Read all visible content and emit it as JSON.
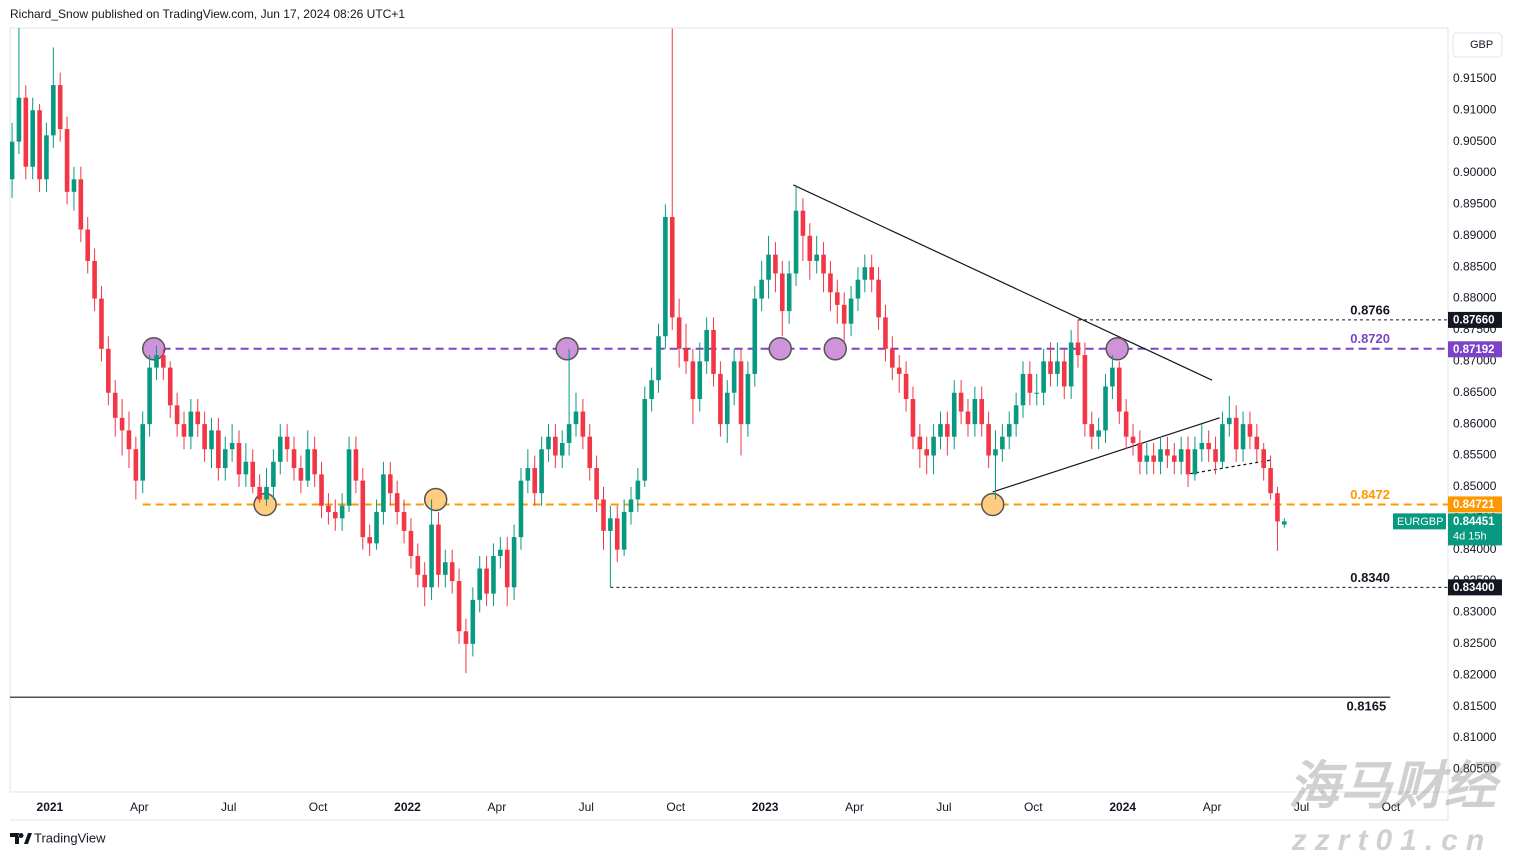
{
  "header": {
    "text": "Richard_Snow published on TradingView.com, Jun 17, 2024 08:26 UTC+1"
  },
  "chart_data": {
    "type": "candlestick",
    "currency": "GBP",
    "symbol": "EURGBP",
    "countdown": "4d 15h",
    "up_color": "#089981",
    "down_color": "#f23645",
    "grid": false,
    "open": [
      0.899,
      0.905,
      0.912,
      0.901,
      0.91,
      0.899,
      0.906,
      0.914,
      0.907,
      0.897,
      0.899,
      0.891,
      0.886,
      0.88,
      0.872,
      0.865,
      0.861,
      0.859,
      0.856,
      0.851,
      0.86,
      0.869,
      0.871,
      0.869,
      0.863,
      0.86,
      0.858,
      0.862,
      0.86,
      0.856,
      0.859,
      0.853,
      0.856,
      0.857,
      0.852,
      0.854,
      0.85,
      0.848,
      0.85,
      0.854,
      0.858,
      0.856,
      0.853,
      0.851,
      0.856,
      0.852,
      0.847,
      0.846,
      0.845,
      0.847,
      0.856,
      0.851,
      0.842,
      0.841,
      0.846,
      0.852,
      0.849,
      0.846,
      0.843,
      0.839,
      0.836,
      0.834,
      0.844,
      0.836,
      0.838,
      0.835,
      0.827,
      0.825,
      0.832,
      0.837,
      0.833,
      0.839,
      0.84,
      0.834,
      0.842,
      0.851,
      0.853,
      0.849,
      0.856,
      0.858,
      0.855,
      0.857,
      0.86,
      0.862,
      0.858,
      0.853,
      0.848,
      0.843,
      0.845,
      0.84,
      0.846,
      0.848,
      0.851,
      0.864,
      0.867,
      0.874,
      0.893,
      0.877,
      0.872,
      0.87,
      0.864,
      0.87,
      0.875,
      0.868,
      0.86,
      0.865,
      0.87,
      0.86,
      0.868,
      0.88,
      0.883,
      0.887,
      0.884,
      0.878,
      0.884,
      0.894,
      0.89,
      0.886,
      0.887,
      0.884,
      0.881,
      0.879,
      0.876,
      0.88,
      0.883,
      0.885,
      0.883,
      0.877,
      0.872,
      0.869,
      0.868,
      0.864,
      0.858,
      0.856,
      0.855,
      0.858,
      0.86,
      0.858,
      0.865,
      0.862,
      0.86,
      0.864,
      0.86,
      0.855,
      0.856,
      0.858,
      0.86,
      0.863,
      0.868,
      0.865,
      0.865,
      0.87,
      0.868,
      0.87,
      0.866,
      0.873,
      0.871,
      0.86,
      0.858,
      0.859,
      0.866,
      0.869,
      0.862,
      0.858,
      0.857,
      0.854,
      0.855,
      0.854,
      0.856,
      0.855,
      0.854,
      0.856,
      0.852,
      0.856,
      0.857,
      0.856,
      0.854,
      0.86,
      0.861,
      0.856,
      0.86,
      0.858,
      0.856,
      0.853,
      0.849,
      0.844
    ],
    "high": [
      0.908,
      0.925,
      0.914,
      0.912,
      0.911,
      0.908,
      0.92,
      0.916,
      0.909,
      0.901,
      0.901,
      0.893,
      0.888,
      0.882,
      0.874,
      0.867,
      0.864,
      0.862,
      0.858,
      0.862,
      0.871,
      0.8725,
      0.872,
      0.87,
      0.865,
      0.862,
      0.864,
      0.864,
      0.862,
      0.861,
      0.861,
      0.858,
      0.86,
      0.859,
      0.857,
      0.856,
      0.852,
      0.853,
      0.856,
      0.86,
      0.86,
      0.858,
      0.855,
      0.859,
      0.858,
      0.854,
      0.849,
      0.848,
      0.849,
      0.858,
      0.858,
      0.853,
      0.844,
      0.848,
      0.854,
      0.854,
      0.851,
      0.848,
      0.845,
      0.841,
      0.838,
      0.848,
      0.846,
      0.84,
      0.84,
      0.837,
      0.829,
      0.834,
      0.839,
      0.839,
      0.841,
      0.842,
      0.842,
      0.844,
      0.853,
      0.856,
      0.855,
      0.858,
      0.86,
      0.86,
      0.859,
      0.872,
      0.865,
      0.864,
      0.86,
      0.855,
      0.85,
      0.847,
      0.847,
      0.848,
      0.85,
      0.853,
      0.866,
      0.869,
      0.876,
      0.895,
      0.923,
      0.88,
      0.876,
      0.872,
      0.873,
      0.877,
      0.877,
      0.87,
      0.867,
      0.872,
      0.872,
      0.87,
      0.882,
      0.886,
      0.89,
      0.889,
      0.886,
      0.886,
      0.8981,
      0.896,
      0.892,
      0.89,
      0.889,
      0.886,
      0.883,
      0.881,
      0.882,
      0.885,
      0.887,
      0.887,
      0.885,
      0.879,
      0.874,
      0.871,
      0.87,
      0.866,
      0.86,
      0.858,
      0.86,
      0.862,
      0.862,
      0.867,
      0.867,
      0.864,
      0.866,
      0.866,
      0.862,
      0.859,
      0.86,
      0.862,
      0.865,
      0.87,
      0.87,
      0.868,
      0.872,
      0.873,
      0.873,
      0.872,
      0.875,
      0.8766,
      0.873,
      0.862,
      0.861,
      0.868,
      0.871,
      0.87,
      0.864,
      0.86,
      0.859,
      0.857,
      0.857,
      0.858,
      0.858,
      0.857,
      0.858,
      0.858,
      0.858,
      0.86,
      0.859,
      0.858,
      0.862,
      0.8645,
      0.863,
      0.862,
      0.862,
      0.86,
      0.857,
      0.855,
      0.85,
      0.845
    ],
    "low": [
      0.896,
      0.903,
      0.899,
      0.899,
      0.897,
      0.897,
      0.904,
      0.905,
      0.895,
      0.894,
      0.889,
      0.884,
      0.878,
      0.87,
      0.863,
      0.858,
      0.855,
      0.853,
      0.848,
      0.849,
      0.858,
      0.867,
      0.867,
      0.861,
      0.858,
      0.856,
      0.856,
      0.858,
      0.854,
      0.853,
      0.851,
      0.851,
      0.854,
      0.85,
      0.85,
      0.849,
      0.8475,
      0.847,
      0.848,
      0.852,
      0.854,
      0.851,
      0.849,
      0.85,
      0.85,
      0.845,
      0.844,
      0.843,
      0.843,
      0.846,
      0.849,
      0.84,
      0.839,
      0.84,
      0.844,
      0.847,
      0.844,
      0.841,
      0.837,
      0.834,
      0.831,
      0.832,
      0.834,
      0.834,
      0.833,
      0.825,
      0.8203,
      0.823,
      0.83,
      0.831,
      0.831,
      0.837,
      0.831,
      0.832,
      0.84,
      0.849,
      0.847,
      0.847,
      0.854,
      0.853,
      0.853,
      0.855,
      0.858,
      0.856,
      0.851,
      0.846,
      0.84,
      0.834,
      0.838,
      0.839,
      0.844,
      0.846,
      0.85,
      0.862,
      0.865,
      0.872,
      0.875,
      0.869,
      0.868,
      0.86,
      0.862,
      0.868,
      0.866,
      0.858,
      0.857,
      0.863,
      0.855,
      0.858,
      0.866,
      0.878,
      0.88,
      0.881,
      0.874,
      0.876,
      0.882,
      0.886,
      0.883,
      0.884,
      0.881,
      0.878,
      0.876,
      0.873,
      0.874,
      0.878,
      0.881,
      0.881,
      0.875,
      0.87,
      0.867,
      0.865,
      0.862,
      0.856,
      0.853,
      0.852,
      0.852,
      0.856,
      0.855,
      0.856,
      0.86,
      0.858,
      0.858,
      0.858,
      0.853,
      0.848,
      0.854,
      0.856,
      0.858,
      0.861,
      0.863,
      0.863,
      0.863,
      0.866,
      0.866,
      0.864,
      0.864,
      0.869,
      0.858,
      0.856,
      0.856,
      0.857,
      0.864,
      0.86,
      0.856,
      0.855,
      0.852,
      0.852,
      0.852,
      0.852,
      0.853,
      0.852,
      0.852,
      0.85,
      0.851,
      0.854,
      0.854,
      0.852,
      0.853,
      0.858,
      0.854,
      0.854,
      0.856,
      0.854,
      0.851,
      0.848,
      0.8398,
      0.8435
    ],
    "close": [
      0.905,
      0.912,
      0.901,
      0.91,
      0.899,
      0.906,
      0.914,
      0.907,
      0.897,
      0.899,
      0.891,
      0.886,
      0.88,
      0.872,
      0.865,
      0.861,
      0.859,
      0.856,
      0.851,
      0.86,
      0.869,
      0.871,
      0.869,
      0.863,
      0.86,
      0.858,
      0.862,
      0.86,
      0.856,
      0.859,
      0.853,
      0.856,
      0.857,
      0.852,
      0.854,
      0.85,
      0.848,
      0.85,
      0.854,
      0.858,
      0.856,
      0.853,
      0.851,
      0.856,
      0.852,
      0.847,
      0.846,
      0.845,
      0.847,
      0.856,
      0.851,
      0.842,
      0.841,
      0.846,
      0.852,
      0.849,
      0.846,
      0.843,
      0.839,
      0.836,
      0.834,
      0.844,
      0.836,
      0.838,
      0.835,
      0.827,
      0.825,
      0.832,
      0.837,
      0.833,
      0.839,
      0.84,
      0.834,
      0.842,
      0.851,
      0.853,
      0.849,
      0.856,
      0.858,
      0.855,
      0.857,
      0.86,
      0.862,
      0.858,
      0.853,
      0.848,
      0.843,
      0.845,
      0.84,
      0.846,
      0.848,
      0.851,
      0.864,
      0.867,
      0.874,
      0.893,
      0.877,
      0.872,
      0.87,
      0.864,
      0.87,
      0.875,
      0.868,
      0.86,
      0.865,
      0.87,
      0.86,
      0.868,
      0.88,
      0.883,
      0.887,
      0.884,
      0.878,
      0.884,
      0.894,
      0.89,
      0.886,
      0.887,
      0.884,
      0.881,
      0.879,
      0.876,
      0.88,
      0.883,
      0.885,
      0.883,
      0.877,
      0.872,
      0.869,
      0.868,
      0.864,
      0.858,
      0.856,
      0.855,
      0.858,
      0.86,
      0.858,
      0.865,
      0.862,
      0.86,
      0.864,
      0.86,
      0.855,
      0.856,
      0.858,
      0.86,
      0.863,
      0.868,
      0.865,
      0.865,
      0.87,
      0.868,
      0.87,
      0.866,
      0.873,
      0.871,
      0.86,
      0.858,
      0.859,
      0.866,
      0.869,
      0.862,
      0.858,
      0.857,
      0.854,
      0.855,
      0.854,
      0.856,
      0.855,
      0.854,
      0.856,
      0.852,
      0.856,
      0.857,
      0.856,
      0.854,
      0.86,
      0.861,
      0.856,
      0.86,
      0.858,
      0.856,
      0.853,
      0.849,
      0.8445,
      0.84451
    ],
    "xlim": [
      -0.3,
      208.8
    ],
    "xticks": [
      {
        "value": 5.5,
        "label": "2021"
      },
      {
        "value": 18.5,
        "label": "Apr"
      },
      {
        "value": 31.5,
        "label": "Jul"
      },
      {
        "value": 44.5,
        "label": "Oct"
      },
      {
        "value": 57.5,
        "label": "2022"
      },
      {
        "value": 70.5,
        "label": "Apr"
      },
      {
        "value": 83.5,
        "label": "Jul"
      },
      {
        "value": 96.5,
        "label": "Oct"
      },
      {
        "value": 109.5,
        "label": "2023"
      },
      {
        "value": 122.5,
        "label": "Apr"
      },
      {
        "value": 135.5,
        "label": "Jul"
      },
      {
        "value": 148.5,
        "label": "Oct"
      },
      {
        "value": 161.5,
        "label": "2024"
      },
      {
        "value": 174.5,
        "label": "Apr"
      },
      {
        "value": 187.5,
        "label": "Jul"
      },
      {
        "value": 200.5,
        "label": "Oct"
      }
    ],
    "ylim": [
      0.8014,
      0.9231
    ],
    "yticks": [
      {
        "value": 0.805,
        "label": "0.80500"
      },
      {
        "value": 0.81,
        "label": "0.81000"
      },
      {
        "value": 0.815,
        "label": "0.81500"
      },
      {
        "value": 0.82,
        "label": "0.82000"
      },
      {
        "value": 0.825,
        "label": "0.82500"
      },
      {
        "value": 0.83,
        "label": "0.83000"
      },
      {
        "value": 0.835,
        "label": "0.83500"
      },
      {
        "value": 0.84,
        "label": "0.84000"
      },
      {
        "value": 0.845,
        "label": "0.84500"
      },
      {
        "value": 0.85,
        "label": "0.85000"
      },
      {
        "value": 0.855,
        "label": "0.85500"
      },
      {
        "value": 0.86,
        "label": "0.86000"
      },
      {
        "value": 0.865,
        "label": "0.86500"
      },
      {
        "value": 0.87,
        "label": "0.87000"
      },
      {
        "value": 0.875,
        "label": "0.87500"
      },
      {
        "value": 0.88,
        "label": "0.88000"
      },
      {
        "value": 0.885,
        "label": "0.88500"
      },
      {
        "value": 0.89,
        "label": "0.89000"
      },
      {
        "value": 0.895,
        "label": "0.89500"
      },
      {
        "value": 0.9,
        "label": "0.90000"
      },
      {
        "value": 0.905,
        "label": "0.90500"
      },
      {
        "value": 0.91,
        "label": "0.91000"
      },
      {
        "value": 0.915,
        "label": "0.91500"
      }
    ],
    "levels": [
      {
        "value": 0.8766,
        "label": "0.8766",
        "from": 155,
        "color": "#131722",
        "style": "dotted",
        "label_side": "above",
        "tag": {
          "value": 0.8766,
          "label": "0.87660"
        }
      },
      {
        "value": 0.872,
        "label": "0.8720",
        "from": 20,
        "color": "#7b44c8",
        "style": "dashed",
        "label_side": "above",
        "tag": {
          "value": 0.87192,
          "label": "0.87192"
        }
      },
      {
        "value": 0.8472,
        "label": "0.8472",
        "from": 19,
        "color": "#ff9800",
        "style": "dashed",
        "label_side": "above",
        "tag": {
          "value": 0.84721,
          "label": "0.84721"
        }
      },
      {
        "value": 0.834,
        "label": "0.8340",
        "from": 87,
        "color": "#131722",
        "style": "dotted",
        "label_side": "above",
        "tag": {
          "value": 0.834,
          "label": "0.83400"
        }
      },
      {
        "value": 0.8165,
        "label": "0.8165",
        "from": -0.3,
        "to": 200.4,
        "color": "#131722",
        "style": "solid",
        "label_side": "below"
      }
    ],
    "trendlines": [
      {
        "points": [
          [
            113.6,
            0.8981
          ],
          [
            174.5,
            0.867
          ]
        ],
        "style": "solid"
      },
      {
        "points": [
          [
            142.6,
            0.8492
          ],
          [
            175.6,
            0.861
          ]
        ],
        "style": "solid"
      },
      {
        "points": [
          [
            171.3,
            0.8521
          ],
          [
            183.2,
            0.8543
          ]
        ],
        "style": "dotted"
      }
    ],
    "markers": [
      {
        "x": 20.6,
        "y": 0.872,
        "color": "#ce93d8"
      },
      {
        "x": 80.7,
        "y": 0.872,
        "color": "#ce93d8"
      },
      {
        "x": 111.7,
        "y": 0.872,
        "color": "#ce93d8"
      },
      {
        "x": 119.7,
        "y": 0.872,
        "color": "#ce93d8"
      },
      {
        "x": 160.7,
        "y": 0.872,
        "color": "#ce93d8"
      },
      {
        "x": 36.8,
        "y": 0.8472,
        "color": "#ffcc80"
      },
      {
        "x": 61.6,
        "y": 0.848,
        "color": "#ffcc80"
      },
      {
        "x": 142.6,
        "y": 0.8472,
        "color": "#ffcc80"
      }
    ]
  },
  "footer": {
    "brand": "TradingView"
  },
  "watermark": {
    "title": "海马财经",
    "site": "zzrt01.cn"
  }
}
